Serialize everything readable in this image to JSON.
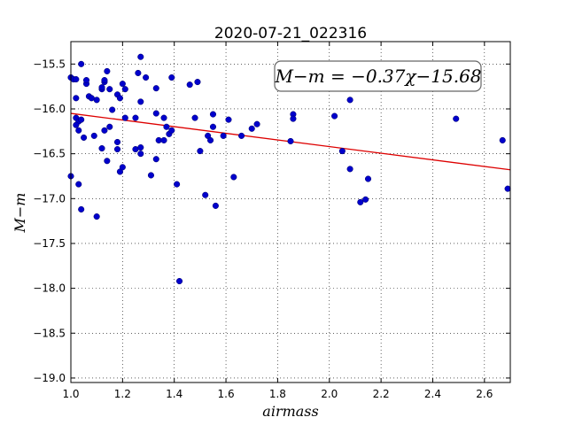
{
  "chart_data": {
    "type": "scatter",
    "title": "2020-07-21_022316",
    "xlabel": "airmass",
    "ylabel": "M−m",
    "xlim": [
      1.0,
      2.7
    ],
    "ylim": [
      -19.05,
      -15.25
    ],
    "xticks": [
      1.0,
      1.2,
      1.4,
      1.6,
      1.8,
      2.0,
      2.2,
      2.4,
      2.6
    ],
    "xtick_labels": [
      "1.0",
      "1.2",
      "1.4",
      "1.6",
      "1.8",
      "2.0",
      "2.2",
      "2.4",
      "2.6"
    ],
    "yticks": [
      -15.5,
      -16.0,
      -16.5,
      -17.0,
      -17.5,
      -18.0,
      -18.5,
      -19.0
    ],
    "ytick_labels": [
      "−15.5",
      "−16.0",
      "−16.5",
      "−17.0",
      "−17.5",
      "−18.0",
      "−18.5",
      "−19.0"
    ],
    "grid": true,
    "point_color": "#0000cc",
    "fit_color": "#dd0000",
    "fit": {
      "slope": -0.37,
      "intercept": -15.68
    },
    "annotation": "M−m = −0.37χ−15.68",
    "points": [
      [
        1.0,
        -15.65
      ],
      [
        1.0,
        -16.75
      ],
      [
        1.01,
        -15.67
      ],
      [
        1.02,
        -15.67
      ],
      [
        1.02,
        -15.88
      ],
      [
        1.02,
        -16.1
      ],
      [
        1.03,
        -16.14
      ],
      [
        1.02,
        -16.18
      ],
      [
        1.03,
        -16.24
      ],
      [
        1.04,
        -16.12
      ],
      [
        1.03,
        -16.84
      ],
      [
        1.04,
        -15.5
      ],
      [
        1.05,
        -16.32
      ],
      [
        1.04,
        -17.12
      ],
      [
        1.06,
        -15.72
      ],
      [
        1.06,
        -15.68
      ],
      [
        1.07,
        -15.86
      ],
      [
        1.08,
        -15.88
      ],
      [
        1.1,
        -15.9
      ],
      [
        1.09,
        -16.3
      ],
      [
        1.1,
        -17.2
      ],
      [
        1.12,
        -15.78
      ],
      [
        1.13,
        -15.7
      ],
      [
        1.12,
        -15.76
      ],
      [
        1.13,
        -15.68
      ],
      [
        1.14,
        -15.58
      ],
      [
        1.15,
        -15.78
      ],
      [
        1.13,
        -16.24
      ],
      [
        1.12,
        -16.44
      ],
      [
        1.14,
        -16.58
      ],
      [
        1.15,
        -16.2
      ],
      [
        1.16,
        -16.01
      ],
      [
        1.18,
        -15.84
      ],
      [
        1.19,
        -15.88
      ],
      [
        1.18,
        -16.37
      ],
      [
        1.18,
        -16.45
      ],
      [
        1.19,
        -16.7
      ],
      [
        1.2,
        -15.72
      ],
      [
        1.21,
        -15.78
      ],
      [
        1.21,
        -16.1
      ],
      [
        1.2,
        -16.65
      ],
      [
        1.25,
        -16.1
      ],
      [
        1.26,
        -15.6
      ],
      [
        1.27,
        -15.42
      ],
      [
        1.27,
        -15.92
      ],
      [
        1.25,
        -16.45
      ],
      [
        1.27,
        -16.43
      ],
      [
        1.27,
        -16.5
      ],
      [
        1.29,
        -15.65
      ],
      [
        1.31,
        -16.74
      ],
      [
        1.33,
        -15.77
      ],
      [
        1.33,
        -16.05
      ],
      [
        1.34,
        -16.35
      ],
      [
        1.33,
        -16.56
      ],
      [
        1.36,
        -16.1
      ],
      [
        1.36,
        -16.35
      ],
      [
        1.37,
        -16.2
      ],
      [
        1.38,
        -16.28
      ],
      [
        1.39,
        -15.65
      ],
      [
        1.39,
        -16.24
      ],
      [
        1.41,
        -16.84
      ],
      [
        1.42,
        -17.92
      ],
      [
        1.46,
        -15.73
      ],
      [
        1.48,
        -16.1
      ],
      [
        1.49,
        -15.7
      ],
      [
        1.5,
        -16.47
      ],
      [
        1.52,
        -16.96
      ],
      [
        1.53,
        -16.3
      ],
      [
        1.54,
        -16.35
      ],
      [
        1.55,
        -16.2
      ],
      [
        1.55,
        -16.06
      ],
      [
        1.56,
        -17.08
      ],
      [
        1.59,
        -16.3
      ],
      [
        1.61,
        -16.12
      ],
      [
        1.63,
        -16.76
      ],
      [
        1.66,
        -16.3
      ],
      [
        1.7,
        -16.22
      ],
      [
        1.72,
        -16.17
      ],
      [
        1.85,
        -16.36
      ],
      [
        1.86,
        -16.06
      ],
      [
        1.86,
        -16.11
      ],
      [
        2.02,
        -16.08
      ],
      [
        2.05,
        -16.47
      ],
      [
        2.08,
        -15.9
      ],
      [
        2.08,
        -16.67
      ],
      [
        2.12,
        -17.04
      ],
      [
        2.14,
        -17.01
      ],
      [
        2.15,
        -16.78
      ],
      [
        2.49,
        -16.11
      ],
      [
        2.67,
        -16.35
      ],
      [
        2.69,
        -16.89
      ]
    ]
  }
}
